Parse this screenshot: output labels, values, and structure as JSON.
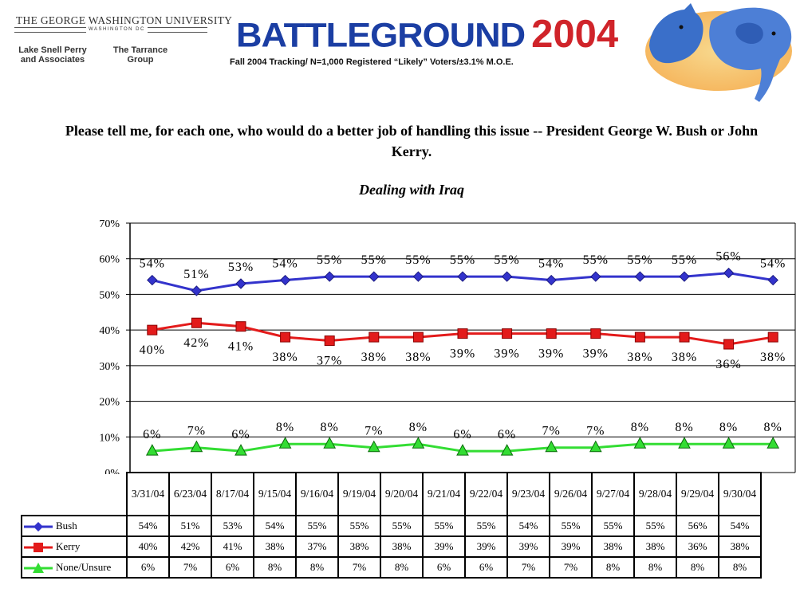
{
  "header": {
    "university": "THE GEORGE WASHINGTON UNIVERSITY",
    "university_sub": "WASHINGTON DC",
    "firm1": "Lake Snell Perry and Associates",
    "firm2": "The Tarrance Group",
    "brand_word": "BATTLEGROUND",
    "brand_year": "2004",
    "tracking": "Fall 2004 Tracking/ N=1,000 Registered “Likely” Voters/±3.1% M.O.E."
  },
  "question": "Please tell me, for each one, who would do a better job of handling this issue  --  President George W. Bush or John Kerry.",
  "subtitle": "Dealing with Iraq",
  "colors": {
    "bush": "#3333cc",
    "kerry": "#e31b1b",
    "none": "#33dd33"
  },
  "chart_data": {
    "type": "line",
    "categories": [
      "3/31/04",
      "6/23/04",
      "8/17/04",
      "9/15/04",
      "9/16/04",
      "9/19/04",
      "9/20/04",
      "9/21/04",
      "9/22/04",
      "9/23/04",
      "9/26/04",
      "9/27/04",
      "9/28/04",
      "9/29/04",
      "9/30/04"
    ],
    "y_ticks": [
      "0%",
      "10%",
      "20%",
      "30%",
      "40%",
      "50%",
      "60%",
      "70%"
    ],
    "ylim": [
      0,
      70
    ],
    "grid": true,
    "series": [
      {
        "name": "Bush",
        "marker": "diamond",
        "color": "#3333cc",
        "values": [
          54,
          51,
          53,
          54,
          55,
          55,
          55,
          55,
          55,
          54,
          55,
          55,
          55,
          56,
          54
        ],
        "labels": [
          "54%",
          "51%",
          "53%",
          "54%",
          "55%",
          "55%",
          "55%",
          "55%",
          "55%",
          "54%",
          "55%",
          "55%",
          "55%",
          "56%",
          "54%"
        ]
      },
      {
        "name": "Kerry",
        "marker": "square",
        "color": "#e31b1b",
        "values": [
          40,
          42,
          41,
          38,
          37,
          38,
          38,
          39,
          39,
          39,
          39,
          38,
          38,
          36,
          38
        ],
        "labels": [
          "40%",
          "42%",
          "41%",
          "38%",
          "37%",
          "38%",
          "38%",
          "39%",
          "39%",
          "39%",
          "39%",
          "38%",
          "38%",
          "36%",
          "38%"
        ]
      },
      {
        "name": "None/Unsure",
        "marker": "triangle",
        "color": "#33dd33",
        "values": [
          6,
          7,
          6,
          8,
          8,
          7,
          8,
          6,
          6,
          7,
          7,
          8,
          8,
          8,
          8
        ],
        "labels": [
          "6%",
          "7%",
          "6%",
          "8%",
          "8%",
          "7%",
          "8%",
          "6%",
          "6%",
          "7%",
          "7%",
          "8%",
          "8%",
          "8%",
          "8%"
        ]
      }
    ]
  }
}
